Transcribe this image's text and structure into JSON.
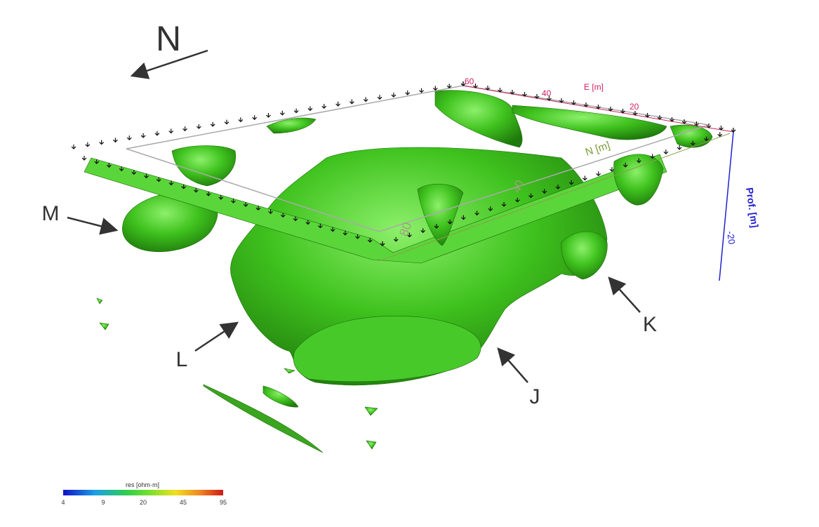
{
  "compass": {
    "label": "N"
  },
  "labels": [
    "M",
    "L",
    "J",
    "K"
  ],
  "axes": {
    "e": {
      "title": "E [m]",
      "ticks": [
        "60",
        "40",
        "20"
      ]
    },
    "n": {
      "title": "N [m]",
      "ticks": [
        "80",
        "40"
      ]
    },
    "depth": {
      "title": "Prof. [m]",
      "ticks": [
        "-20"
      ]
    }
  },
  "colorbar": {
    "title": "res [ohm·m]",
    "ticks": [
      "4",
      "9",
      "20",
      "45",
      "95"
    ]
  }
}
